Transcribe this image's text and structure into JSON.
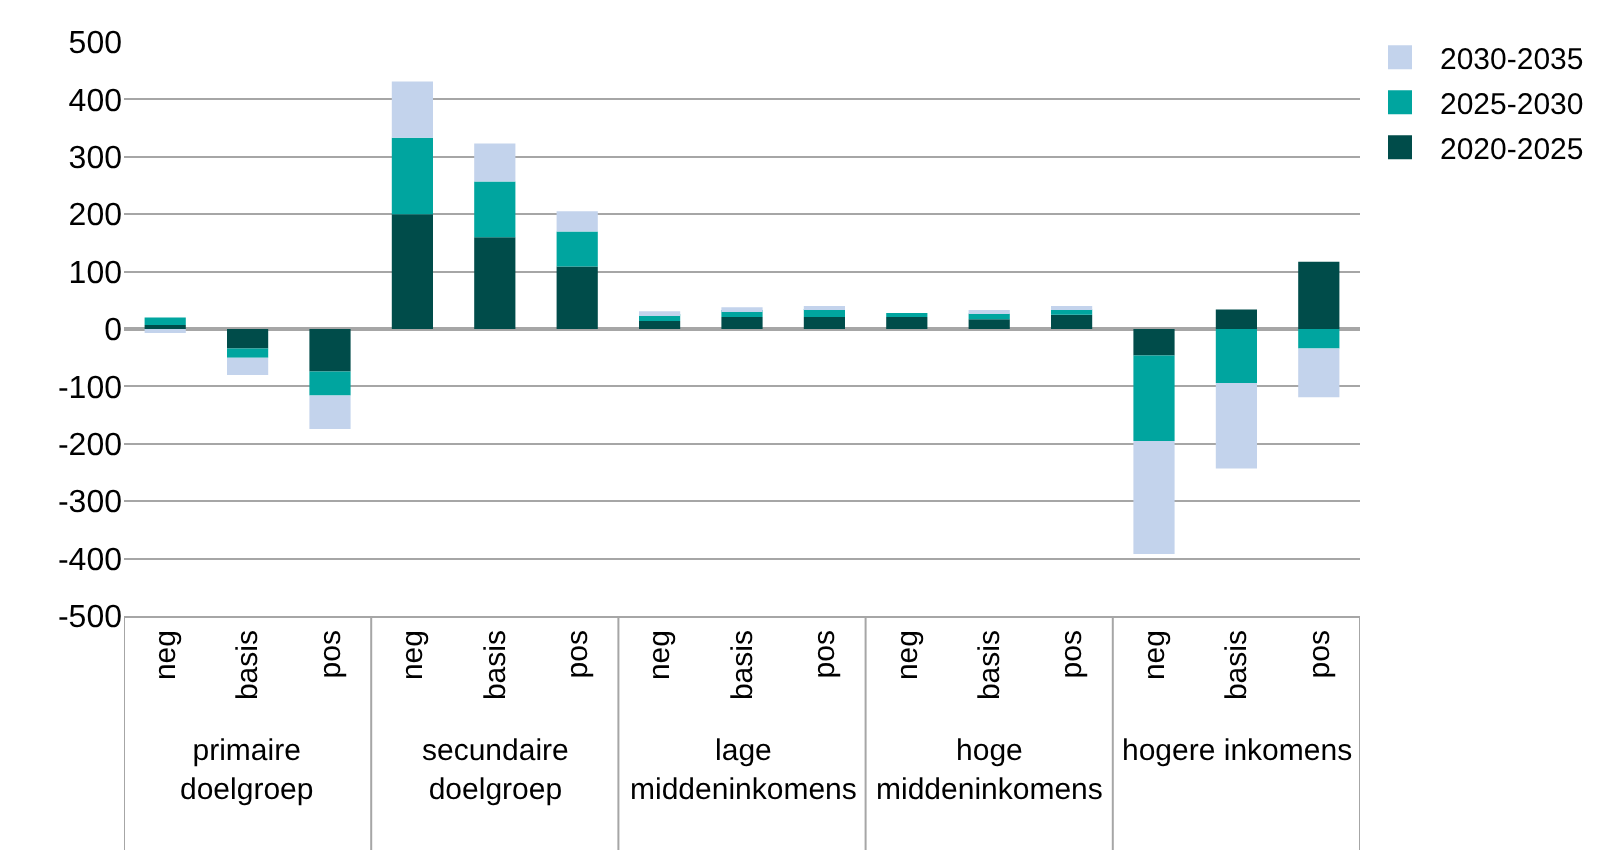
{
  "chart_data": {
    "type": "bar",
    "stacked": true,
    "categories": [
      "neg",
      "basis",
      "pos",
      "neg",
      "basis",
      "pos",
      "neg",
      "basis",
      "pos",
      "neg",
      "basis",
      "pos",
      "neg",
      "basis",
      "pos"
    ],
    "annotations": [
      "primaire doelgroep",
      "secundaire doelgroep",
      "lage middeninkomens",
      "hoge middeninkomens",
      "hogere inkomens"
    ],
    "series": [
      {
        "name": "2020-2025",
        "color": "#004c4a",
        "values": [
          7,
          -34,
          -74,
          200,
          160,
          109,
          14,
          21,
          21,
          21,
          17,
          25,
          -46,
          34,
          117
        ]
      },
      {
        "name": "2025-2030",
        "color": "#00a59f",
        "values": [
          13,
          -16,
          -42,
          133,
          97,
          61,
          12,
          12,
          14,
          7,
          10,
          9,
          -149,
          -94,
          -34
        ]
      },
      {
        "name": "2030-2035",
        "color": "#c3d3ec",
        "values": [
          -7,
          -30,
          -58,
          98,
          66,
          35,
          5,
          5,
          2,
          null,
          4,
          3,
          -197,
          -149,
          -85
        ]
      }
    ],
    "ylim": [
      -500,
      500
    ],
    "yticks": [
      -500,
      -400,
      -300,
      -200,
      -100,
      0,
      100,
      200,
      300,
      400,
      500
    ],
    "grid": "y",
    "legend": "top right"
  }
}
